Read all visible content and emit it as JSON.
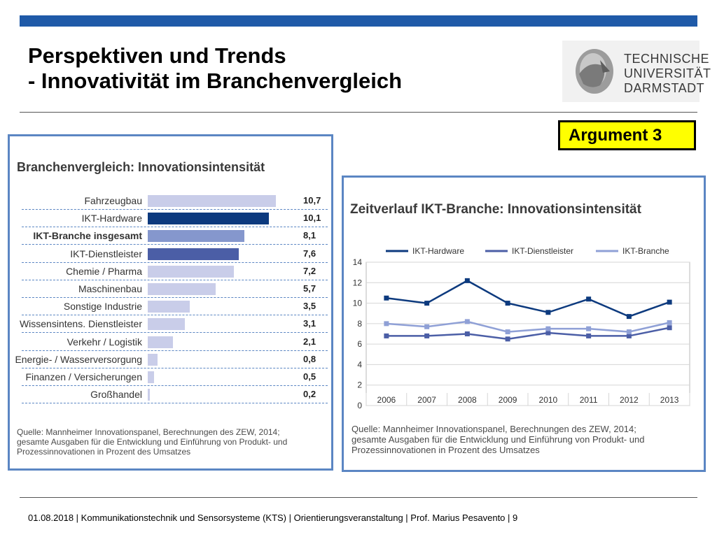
{
  "header": {
    "title_line1": "Perspektiven und Trends",
    "title_line2": "- Innovativität im Branchenvergleich",
    "logo_lines": [
      "TECHNISCHE",
      "UNIVERSITÄT",
      "DARMSTADT"
    ],
    "accent": "#1f5aa8"
  },
  "argument_label": "Argument 3",
  "source_note": [
    "Quelle: Mannheimer Innovationspanel, Berechnungen des ZEW, 2014;",
    "gesamte Ausgaben für die Entwicklung und Einführung von Produkt- und",
    "Prozessinnovationen in Prozent des Umsatzes"
  ],
  "chart_data": [
    {
      "type": "bar",
      "orientation": "horizontal",
      "title": "Branchenvergleich: Innovationsintensität",
      "categories": [
        "Fahrzeugbau",
        "IKT-Hardware",
        "IKT-Branche insgesamt",
        "IKT-Dienstleister",
        "Chemie / Pharma",
        "Maschinenbau",
        "Sonstige Industrie",
        "Wissensintens. Dienstleister",
        "Verkehr / Logistik",
        "Energie- / Wasserversorgung",
        "Finanzen / Versicherungen",
        "Großhandel"
      ],
      "values": [
        10.7,
        10.1,
        8.1,
        7.6,
        7.2,
        5.7,
        3.5,
        3.1,
        2.1,
        0.8,
        0.5,
        0.2
      ],
      "value_labels": [
        "10,7",
        "10,1",
        "8,1",
        "7,6",
        "7,2",
        "5,7",
        "3,5",
        "3,1",
        "2,1",
        "0,8",
        "0,5",
        "0,2"
      ],
      "colors": [
        "#c9cde9",
        "#0d3a7e",
        "#8597cd",
        "#4b5ea6",
        "#c9cde9",
        "#c9cde9",
        "#c9cde9",
        "#c9cde9",
        "#c9cde9",
        "#c9cde9",
        "#c9cde9",
        "#c9cde9"
      ],
      "bold_category": "IKT-Branche insgesamt",
      "xlim": [
        0,
        12
      ]
    },
    {
      "type": "line",
      "title": "Zeitverlauf IKT-Branche: Innovationsintensität",
      "x": [
        "2006",
        "2007",
        "2008",
        "2009",
        "2010",
        "2011",
        "2012",
        "2013"
      ],
      "series": [
        {
          "name": "IKT-Hardware",
          "values": [
            10.5,
            10.0,
            12.2,
            10.0,
            9.1,
            10.4,
            8.7,
            10.1
          ],
          "color": "#0d3a7e"
        },
        {
          "name": "IKT-Dienstleister",
          "values": [
            6.8,
            6.8,
            7.0,
            6.5,
            7.1,
            6.8,
            6.8,
            7.6
          ],
          "color": "#4b5ea6"
        },
        {
          "name": "IKT-Branche",
          "values": [
            8.0,
            7.7,
            8.2,
            7.2,
            7.5,
            7.5,
            7.2,
            8.1
          ],
          "color": "#8fa0d6"
        }
      ],
      "yticks": [
        "0",
        "2",
        "4",
        "6",
        "8",
        "10",
        "12",
        "14"
      ],
      "ylim": [
        0,
        14
      ],
      "grid": true,
      "legend": "top"
    }
  ],
  "footer": "01.08.2018  |  Kommunikationstechnik und Sensorsysteme (KTS) | Orientierungsveranstaltung |  Prof. Marius Pesavento  |  9"
}
